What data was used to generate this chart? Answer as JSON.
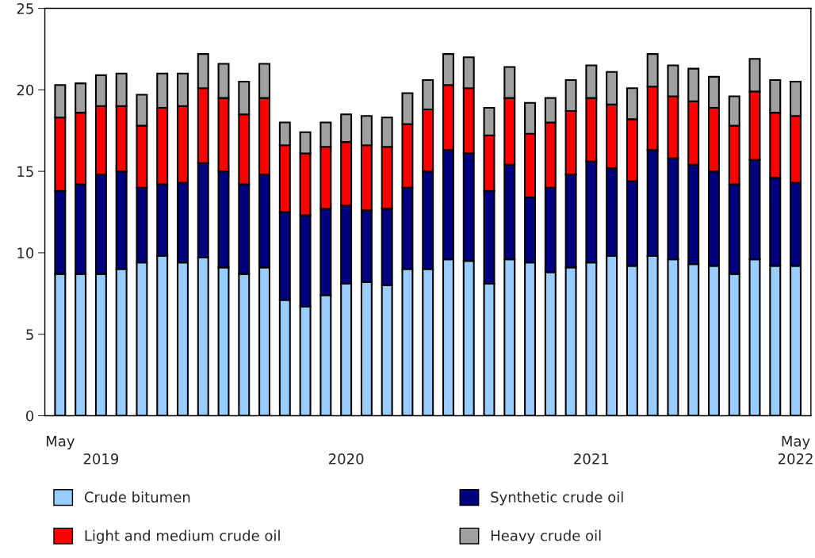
{
  "chart_data": {
    "type": "bar",
    "stacked": true,
    "categories": [
      "May",
      null,
      null,
      null,
      null,
      null,
      null,
      null,
      null,
      null,
      null,
      null,
      null,
      null,
      null,
      null,
      null,
      null,
      null,
      null,
      null,
      null,
      null,
      null,
      null,
      null,
      null,
      null,
      null,
      null,
      null,
      null,
      null,
      null,
      null,
      null,
      "May"
    ],
    "series": [
      {
        "name": "Crude bitumen",
        "color": "#99ccff",
        "values": [
          8.7,
          8.7,
          8.7,
          9.0,
          9.4,
          9.8,
          9.4,
          9.7,
          9.1,
          8.7,
          9.1,
          7.1,
          6.7,
          7.4,
          8.1,
          8.2,
          8.0,
          9.0,
          9.0,
          9.6,
          9.5,
          8.1,
          9.6,
          9.4,
          8.8,
          9.1,
          9.4,
          9.8,
          9.2,
          9.8,
          9.6,
          9.3,
          9.2,
          8.7,
          9.6,
          9.2,
          9.2
        ]
      },
      {
        "name": "Synthetic crude oil",
        "color": "#000080",
        "values": [
          5.1,
          5.5,
          6.1,
          6.0,
          4.6,
          4.4,
          4.9,
          5.8,
          5.9,
          5.5,
          5.7,
          5.4,
          5.6,
          5.3,
          4.8,
          4.4,
          4.7,
          5.0,
          6.0,
          6.7,
          6.6,
          5.7,
          5.8,
          4.0,
          5.2,
          5.7,
          6.2,
          5.4,
          5.2,
          6.5,
          6.2,
          6.1,
          5.8,
          5.5,
          6.1,
          5.4,
          5.1
        ]
      },
      {
        "name": "Light and medium crude oil",
        "color": "#ff0000",
        "values": [
          4.5,
          4.4,
          4.2,
          4.0,
          3.8,
          4.7,
          4.7,
          4.6,
          4.5,
          4.3,
          4.7,
          4.1,
          3.8,
          3.8,
          3.9,
          4.0,
          3.8,
          3.9,
          3.8,
          4.0,
          4.0,
          3.4,
          4.1,
          3.9,
          4.0,
          3.9,
          3.9,
          3.9,
          3.8,
          3.9,
          3.8,
          3.9,
          3.9,
          3.6,
          4.2,
          4.0,
          4.1
        ]
      },
      {
        "name": "Heavy crude oil",
        "color": "#a0a0a0",
        "values": [
          2.0,
          1.8,
          1.9,
          2.0,
          1.9,
          2.1,
          2.0,
          2.1,
          2.1,
          2.0,
          2.1,
          1.4,
          1.3,
          1.5,
          1.7,
          1.8,
          1.8,
          1.9,
          1.8,
          1.9,
          1.9,
          1.7,
          1.9,
          1.9,
          1.5,
          1.9,
          2.0,
          2.0,
          1.9,
          2.0,
          1.9,
          2.0,
          1.9,
          1.8,
          2.0,
          2.0,
          2.1
        ]
      }
    ],
    "annotations": [
      "2019",
      "2020",
      "2021",
      "2022"
    ],
    "ylim": [
      0,
      25
    ],
    "yticks": [
      0,
      5,
      10,
      15,
      20,
      25
    ],
    "grid": false,
    "legend": "bottom"
  }
}
